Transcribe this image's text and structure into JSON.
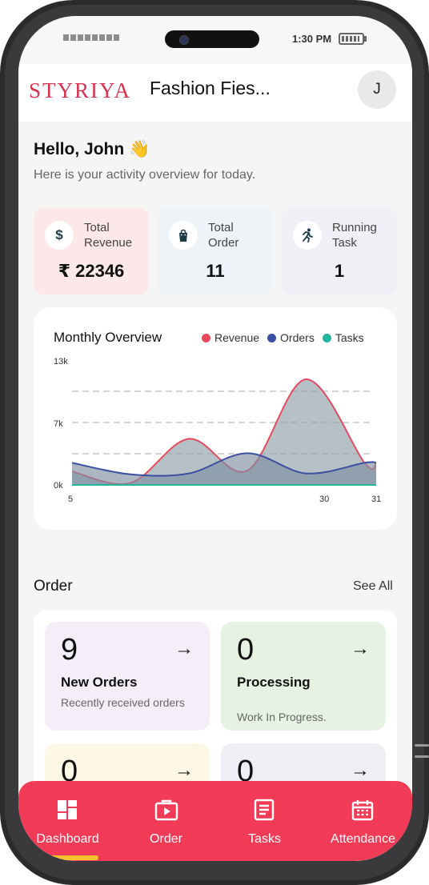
{
  "status": {
    "time": "1:30 PM"
  },
  "header": {
    "logo": "STYRIYA",
    "shop_name": "Fashion Fies...",
    "avatar_initial": "J"
  },
  "greeting": {
    "title": "Hello, John",
    "emoji": "👋",
    "subtitle": "Here is your activity overview for today."
  },
  "stats": [
    {
      "label": "Total Revenue",
      "value": "₹ 22346",
      "icon": "dollar-icon",
      "bg": "#fce8e8"
    },
    {
      "label": "Total Order",
      "value": "11",
      "icon": "shopping-bag-icon",
      "bg": "#eef3f8"
    },
    {
      "label": "Running Task",
      "value": "1",
      "icon": "running-icon",
      "bg": "#f0eff6"
    }
  ],
  "chart": {
    "title": "Monthly Overview"
  },
  "chart_data": {
    "type": "area",
    "title": "Monthly Overview",
    "x": [
      5,
      10,
      15,
      20,
      25,
      30,
      31
    ],
    "x_tick_labels": [
      "5",
      "30",
      "31"
    ],
    "y_tick_labels": [
      "13k",
      "7k",
      "0k"
    ],
    "ylim": [
      0,
      13000
    ],
    "legend_position": "top-right",
    "series": [
      {
        "name": "Revenue",
        "color": "#e8495f",
        "values": [
          1400,
          200,
          4800,
          1500,
          11000,
          2300,
          2200
        ]
      },
      {
        "name": "Orders",
        "color": "#3c4fa3",
        "values": [
          2300,
          1100,
          1200,
          3300,
          1200,
          2300,
          2300
        ]
      },
      {
        "name": "Tasks",
        "color": "#24b5a0",
        "values": [
          0,
          0,
          0,
          0,
          0,
          0,
          0
        ]
      }
    ]
  },
  "orders": {
    "title": "Order",
    "see_all": "See All",
    "tiles": [
      {
        "count": "9",
        "name": "New Orders",
        "desc": "Recently received orders",
        "bg": "#f3eef8"
      },
      {
        "count": "0",
        "name": "Processing",
        "desc": "Work In Progress.",
        "bg": "#e7f3e2"
      },
      {
        "count": "0",
        "name": "",
        "desc": "",
        "bg": "#fdf8e6"
      },
      {
        "count": "0",
        "name": "",
        "desc": "",
        "bg": "#eeeff5"
      }
    ]
  },
  "nav": [
    {
      "label": "Dashboard",
      "icon": "dashboard-icon"
    },
    {
      "label": "Order",
      "icon": "order-icon"
    },
    {
      "label": "Tasks",
      "icon": "tasks-icon"
    },
    {
      "label": "Attendance",
      "icon": "calendar-icon"
    }
  ]
}
